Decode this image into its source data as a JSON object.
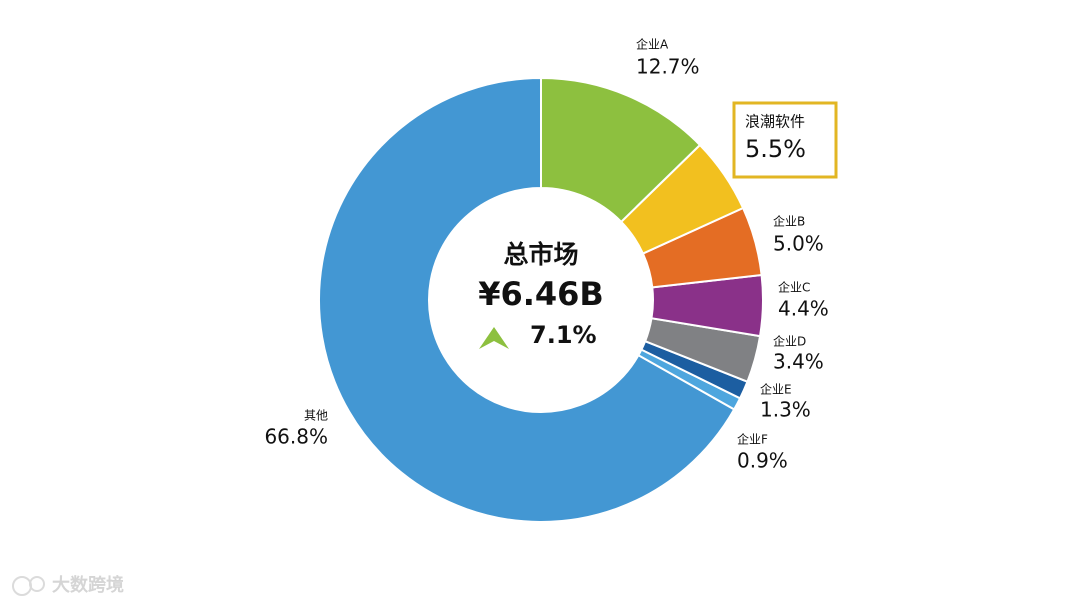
{
  "chart_data": {
    "type": "pie",
    "categories": [
      "企业A",
      "浪潮软件",
      "企业B",
      "企业C",
      "企业D",
      "企业E",
      "企业F",
      "其他"
    ],
    "values": [
      12.7,
      5.5,
      5.0,
      4.4,
      3.4,
      1.3,
      0.9,
      66.8
    ],
    "value_labels": [
      "12.7%",
      "5.5%",
      "5.0%",
      "4.4%",
      "3.4%",
      "1.3%",
      "0.9%",
      "66.8%"
    ],
    "colors": [
      "#8dc03f",
      "#f2c01f",
      "#e46d24",
      "#8a3189",
      "#808184",
      "#1c5ea1",
      "#4ea6de",
      "#4397d3"
    ],
    "highlight": "浪潮软件",
    "center_title": "总市场",
    "center_value": "¥6.46B",
    "center_change": "7.1%"
  },
  "watermark": "大数跨境"
}
